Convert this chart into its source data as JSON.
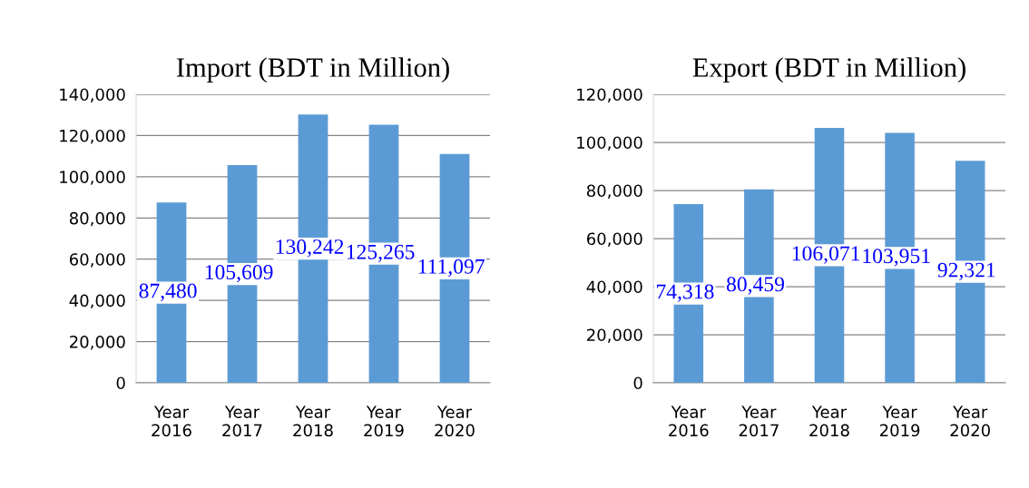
{
  "chart_data": [
    {
      "type": "bar",
      "title": "Import (BDT in Million)",
      "categories": [
        "Year\n2016",
        "Year\n2017",
        "Year\n2018",
        "Year\n2019",
        "Year\n2020"
      ],
      "values": [
        87480,
        105609,
        130242,
        125265,
        111097
      ],
      "value_labels": [
        "87,480",
        "105,609",
        "130,242",
        "125,265",
        "111,097"
      ],
      "color": "#5b9bd5",
      "ylim": [
        0,
        140000
      ],
      "yticks": [
        {
          "value": 0,
          "label": "0"
        },
        {
          "value": 20000,
          "label": "20,000"
        },
        {
          "value": 40000,
          "label": "40,000"
        },
        {
          "value": 60000,
          "label": "60,000"
        },
        {
          "value": 80000,
          "label": "80,000"
        },
        {
          "value": 100000,
          "label": "100,000"
        },
        {
          "value": 120000,
          "label": "120,000"
        },
        {
          "value": 140000,
          "label": "140,000"
        }
      ],
      "grid": "y"
    },
    {
      "type": "bar",
      "title": "Export (BDT in Million)",
      "categories": [
        "Year\n2016",
        "Year\n2017",
        "Year\n2018",
        "Year\n2019",
        "Year\n2020"
      ],
      "values": [
        74318,
        80459,
        106071,
        103951,
        92321
      ],
      "value_labels": [
        "74,318",
        "80,459",
        "106,071",
        "103,951",
        "92,321"
      ],
      "color": "#5b9bd5",
      "ylim": [
        0,
        120000
      ],
      "yticks": [
        {
          "value": 0,
          "label": "0"
        },
        {
          "value": 20000,
          "label": "20,000"
        },
        {
          "value": 40000,
          "label": "40,000"
        },
        {
          "value": 60000,
          "label": "60,000"
        },
        {
          "value": 80000,
          "label": "80,000"
        },
        {
          "value": 100000,
          "label": "100,000"
        },
        {
          "value": 120000,
          "label": "120,000"
        }
      ],
      "grid": "y"
    }
  ]
}
